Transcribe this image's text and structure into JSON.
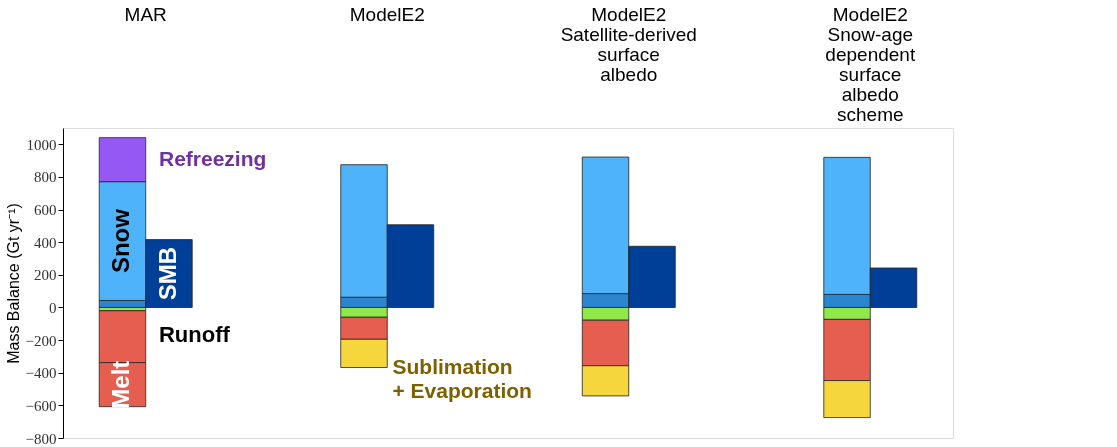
{
  "chart_data": {
    "type": "bar",
    "categories": [
      "MAR",
      "ModelE2",
      "ModelE2 Satellite-derived surface albedo",
      "ModelE2 Snow-age dependent surface albedo scheme"
    ],
    "ylabel": "Mass Balance (Gt yr⁻¹)",
    "ylim": [
      -800,
      1100
    ],
    "yticks": [
      -800,
      -600,
      -400,
      -200,
      0,
      200,
      400,
      600,
      800,
      1000
    ],
    "grid": false,
    "legend": false,
    "series": [
      {
        "color": "#2a86d0",
        "values": [
          43,
          63,
          85,
          80
        ],
        "base": [
          0,
          0,
          0,
          0
        ]
      },
      {
        "name": "Snow",
        "color": "#4fb3fb",
        "values": [
          728,
          812,
          837,
          840
        ],
        "base": [
          43,
          63,
          85,
          80
        ]
      },
      {
        "name": "Refreezing",
        "color": "#9558f2",
        "values": [
          270,
          null,
          null,
          null
        ],
        "base": [
          771,
          null,
          null,
          null
        ]
      },
      {
        "color": "#90e84a",
        "values": [
          -20,
          -60,
          -78,
          -73
        ],
        "base": [
          0,
          0,
          0,
          0
        ]
      },
      {
        "color": "#e55e50",
        "values": [
          -318,
          -135,
          -279,
          -375
        ],
        "base": [
          -20,
          -60,
          -78,
          -73
        ]
      },
      {
        "name": "Melt",
        "color": "#e55e50",
        "values": [
          -270,
          null,
          null,
          null
        ],
        "base": [
          -338,
          null,
          null,
          null
        ]
      },
      {
        "name": "Sublimation + Evaporation",
        "color": "#f5d63d",
        "values": [
          null,
          -173,
          -185,
          -227
        ],
        "base": [
          null,
          -195,
          -357,
          -448
        ]
      },
      {
        "name": "SMB",
        "color": "#003f98",
        "values": [
          416,
          507,
          375,
          242
        ],
        "base": [
          0,
          0,
          0,
          0
        ]
      }
    ],
    "annotations": [
      {
        "text": "Runoff",
        "x": "MAR",
        "y": -170
      }
    ]
  }
}
